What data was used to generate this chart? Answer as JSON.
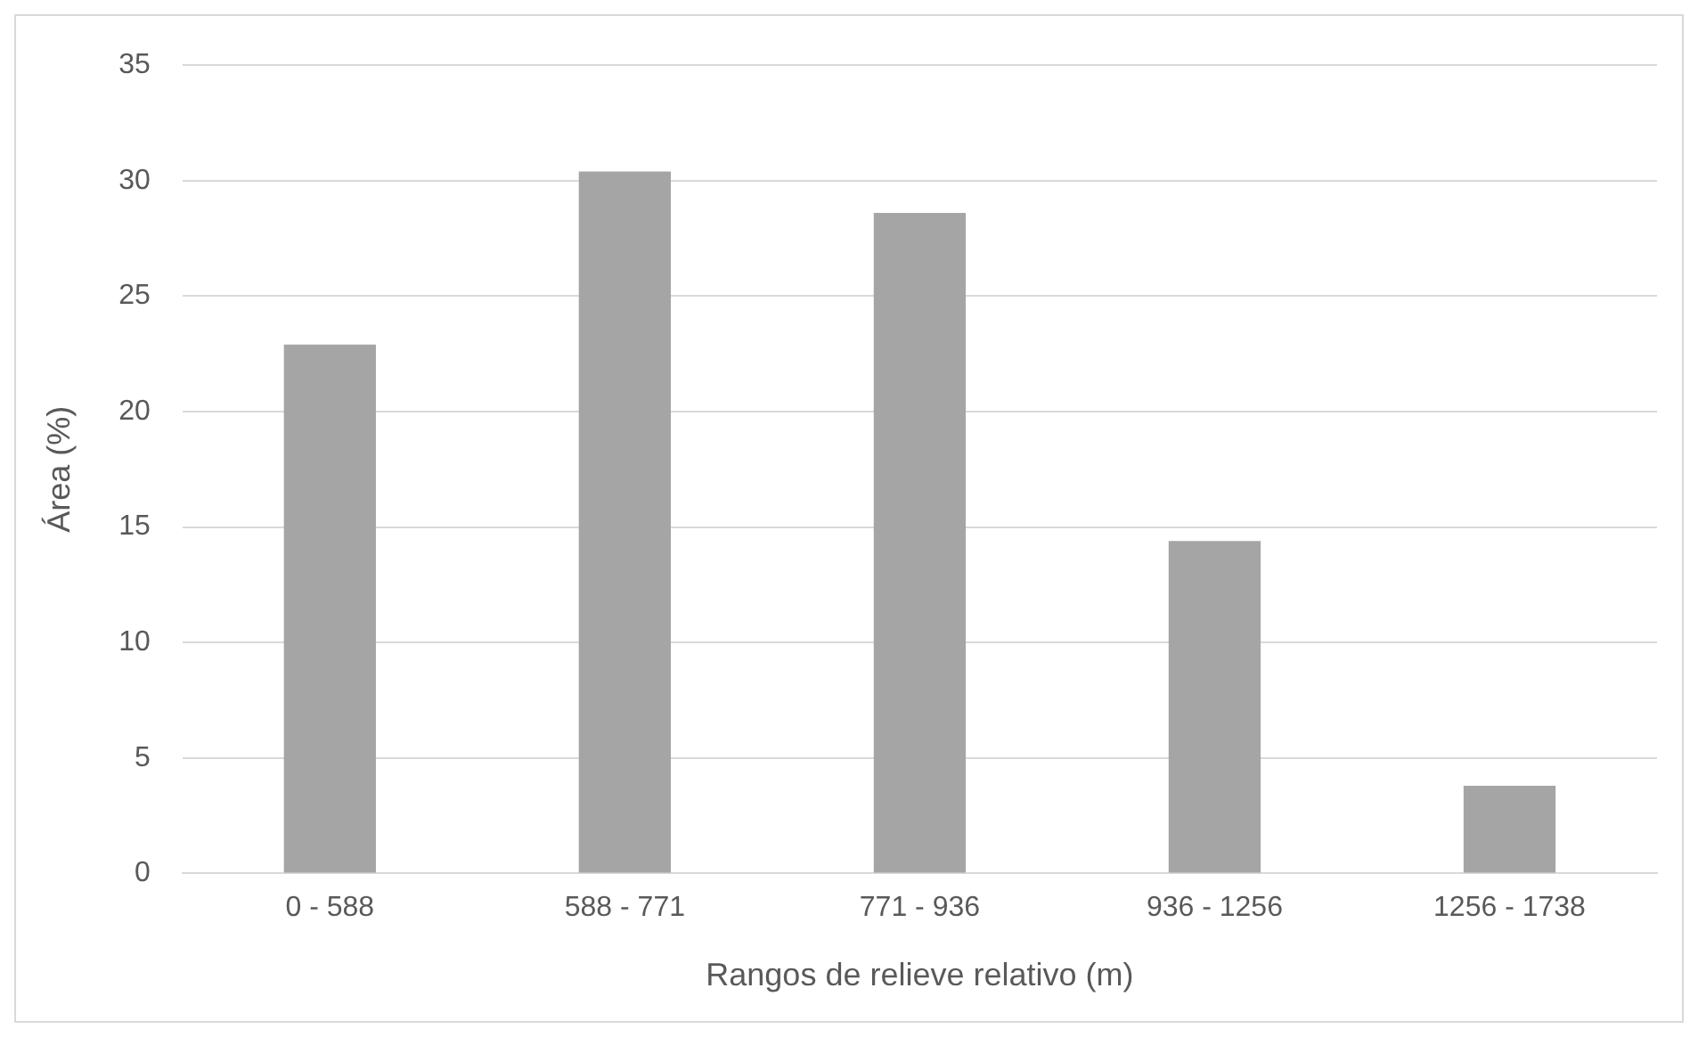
{
  "chart_data": {
    "type": "bar",
    "xlabel": "Rangos de relieve relativo (m)",
    "ylabel": "Área (%)",
    "categories": [
      "0 - 588",
      "588 - 771",
      "771 - 936",
      "936 - 1256",
      "1256 - 1738"
    ],
    "values": [
      22.9,
      30.4,
      28.6,
      14.4,
      3.8
    ],
    "color": "#a5a5a5",
    "ylim": [
      0,
      35
    ],
    "yticks": [
      0,
      5,
      10,
      15,
      20,
      25,
      30,
      35
    ],
    "grid": "y",
    "legend": false
  }
}
